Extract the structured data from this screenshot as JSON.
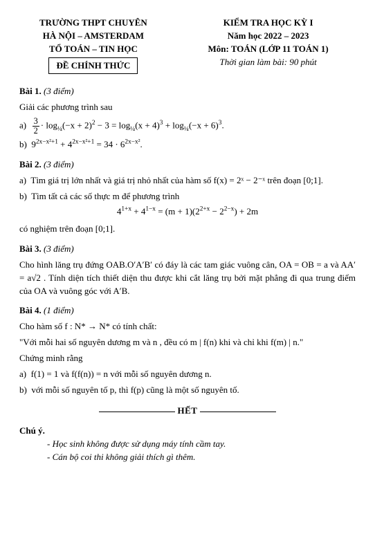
{
  "header": {
    "left": {
      "line1": "TRƯỜNG THPT CHUYÊN",
      "line2": "HÀ NỘI – AMSTERDAM",
      "line3": "TỔ TOÁN – TIN HỌC",
      "box": "ĐỀ CHÍNH THỨC"
    },
    "right": {
      "line1": "KIỂM TRA HỌC KỲ I",
      "line2": "Năm học 2022 – 2023",
      "line3": "Môn: TOÁN (LỚP 11 TOÁN 1)",
      "line4": "Thời gian làm bài: 90 phút"
    }
  },
  "bai1": {
    "title": "Bài 1.",
    "points": "(3 điểm)",
    "intro": "Giải các phương trình sau",
    "a_prefix": "a)",
    "a_frac_n": "3",
    "a_frac_d": "2",
    "a_log_base": "¼",
    "a_text1": "· log",
    "a_arg1": "(−x + 2)",
    "a_pow1": "2",
    "a_mid": " − 3 = log",
    "a_arg2": "(x + 4)",
    "a_pow2": "3",
    "a_mid2": " + log",
    "a_arg3": "(−x + 6)",
    "a_pow3": "3",
    "a_end": ".",
    "b_prefix": "b)",
    "b_t1": "9",
    "b_e1": "2x−x²+1",
    "b_t2": " + 4",
    "b_e2": "2x−x²+1",
    "b_t3": " = 34 · 6",
    "b_e3": "2x−x²",
    "b_end": "."
  },
  "bai2": {
    "title": "Bài 2.",
    "points": "(3 điểm)",
    "a_prefix": "a)",
    "a_text": "Tìm giá trị lớn nhất và giá trị nhỏ nhất của hàm số  f(x) = 2ˣ − 2⁻ˣ trên đoạn [0;1].",
    "b_prefix": "b)",
    "b_text1": "Tìm tất cả các số thực  m  để phương trình",
    "eq_l": "4",
    "eq_e1": "1+x",
    "eq_m1": " + 4",
    "eq_e2": "1−x",
    "eq_m2": " = (m + 1)(2",
    "eq_e3": "2+x",
    "eq_m3": " − 2",
    "eq_e4": "2−x",
    "eq_end": ") + 2m",
    "b_text2": "có nghiệm trên đoạn [0;1]."
  },
  "bai3": {
    "title": "Bài 3.",
    "points": "(3 điểm)",
    "para": "Cho hình lăng trụ đứng OAB.O′A′B′ có đáy là các tam giác vuông cân, OA = OB = a và AA′ = a√2 . Tính diện tích thiết diện thu được khi cắt lăng trụ bởi mặt phẳng đi qua trung điểm của OA và vuông góc với  A′B."
  },
  "bai4": {
    "title": "Bài 4.",
    "points": "(1 điểm)",
    "p1": "Cho hàm số  f : N* → N*  có tính chất:",
    "p2": "\"Với mỗi hai số nguyên dương  m  và  n , đều có m | f(n)  khi và chỉ khi  f(m) | n.\"",
    "p3": "Chứng minh rằng",
    "a_prefix": "a)",
    "a_text": "f(1) = 1  và  f(f(n)) = n với mỗi số nguyên dương  n.",
    "b_prefix": "b)",
    "b_text": "với mỗi số nguyên tố  p, thì  f(p)  cũng là một số nguyên tố."
  },
  "ending": "HẾT",
  "notes": {
    "title": "Chú ý.",
    "n1": "- Học sinh không được sử dụng máy tính cầm tay.",
    "n2": "- Cán bộ coi thi không giải thích gì thêm."
  }
}
